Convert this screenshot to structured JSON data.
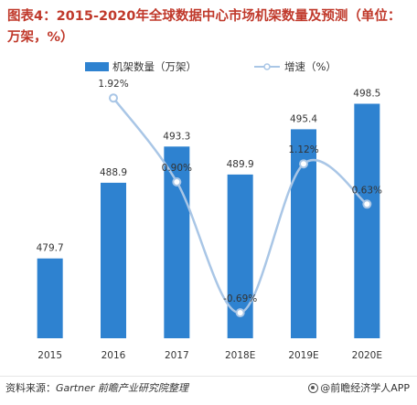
{
  "header": {
    "title": "图表4：2015-2020年全球数据中心市场机架数量及预测（单位：万架，%）"
  },
  "footer": {
    "source_label": "资料来源：",
    "source_text": "Gartner 前瞻产业研究院整理",
    "brand": "@前瞻经济学人APP"
  },
  "colors": {
    "bar": "#2e82d0",
    "line": "#a9c6e6",
    "marker_fill": "#ffffff",
    "title": "#c0392b",
    "label": "#333333"
  },
  "chart_data": {
    "type": "bar",
    "categories": [
      "2015",
      "2016",
      "2017",
      "2018E",
      "2019E",
      "2020E"
    ],
    "series": [
      {
        "name": "机架数量（万架）",
        "type": "bar",
        "axis": "left",
        "values": [
          479.7,
          488.9,
          493.3,
          489.9,
          495.4,
          498.5
        ],
        "labels": [
          "479.7",
          "488.9",
          "493.3",
          "489.9",
          "495.4",
          "498.5"
        ]
      },
      {
        "name": "增速（%）",
        "type": "line",
        "axis": "right",
        "values": [
          null,
          1.92,
          0.9,
          -0.69,
          1.12,
          0.63
        ],
        "labels": [
          "",
          "1.92%",
          "0.90%",
          "-0.69%",
          "1.12%",
          "0.63%"
        ]
      }
    ],
    "ylim_left": [
      470,
      500
    ],
    "ylim_right": [
      -1,
      2
    ],
    "grid": false,
    "legend_position": "top"
  }
}
